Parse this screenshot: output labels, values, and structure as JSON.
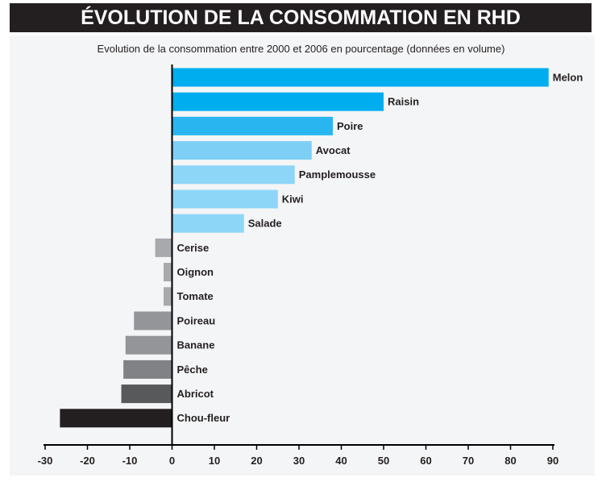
{
  "header": {
    "title": "ÉVOLUTION DE LA CONSOMMATION EN RHD",
    "subtitle": "Evolution de la consommation entre 2000 et 2006 en pourcentage (données en volume)"
  },
  "chart_data": {
    "type": "bar",
    "orientation": "horizontal",
    "title": "ÉVOLUTION DE LA CONSOMMATION EN RHD",
    "subtitle": "Evolution de la consommation entre 2000 et 2006 en pourcentage (données en volume)",
    "categories": [
      "Melon",
      "Raisin",
      "Poire",
      "Avocat",
      "Pamplemousse",
      "Kiwi",
      "Salade",
      "Cerise",
      "Oignon",
      "Tomate",
      "Poireau",
      "Banane",
      "Pêche",
      "Abricot",
      "Chou-fleur"
    ],
    "values": [
      89,
      50,
      38,
      33,
      29,
      25,
      17,
      -4,
      -2,
      -2,
      -9,
      -11,
      -11.5,
      -12,
      -26.5
    ],
    "colors": [
      "#00aeef",
      "#00aeef",
      "#29b6f0",
      "#7dcff5",
      "#8ed6f7",
      "#8ed6f7",
      "#8ed6f7",
      "#a7a9ac",
      "#a7a9ac",
      "#a7a9ac",
      "#939598",
      "#939598",
      "#808285",
      "#58595b",
      "#231f20"
    ],
    "xlim": [
      -30,
      90
    ],
    "xticks": [
      -30,
      -20,
      -10,
      0,
      10,
      20,
      30,
      40,
      50,
      60,
      70,
      80,
      90
    ],
    "xlabel": "",
    "ylabel": "",
    "grid": false,
    "legend": "none"
  }
}
